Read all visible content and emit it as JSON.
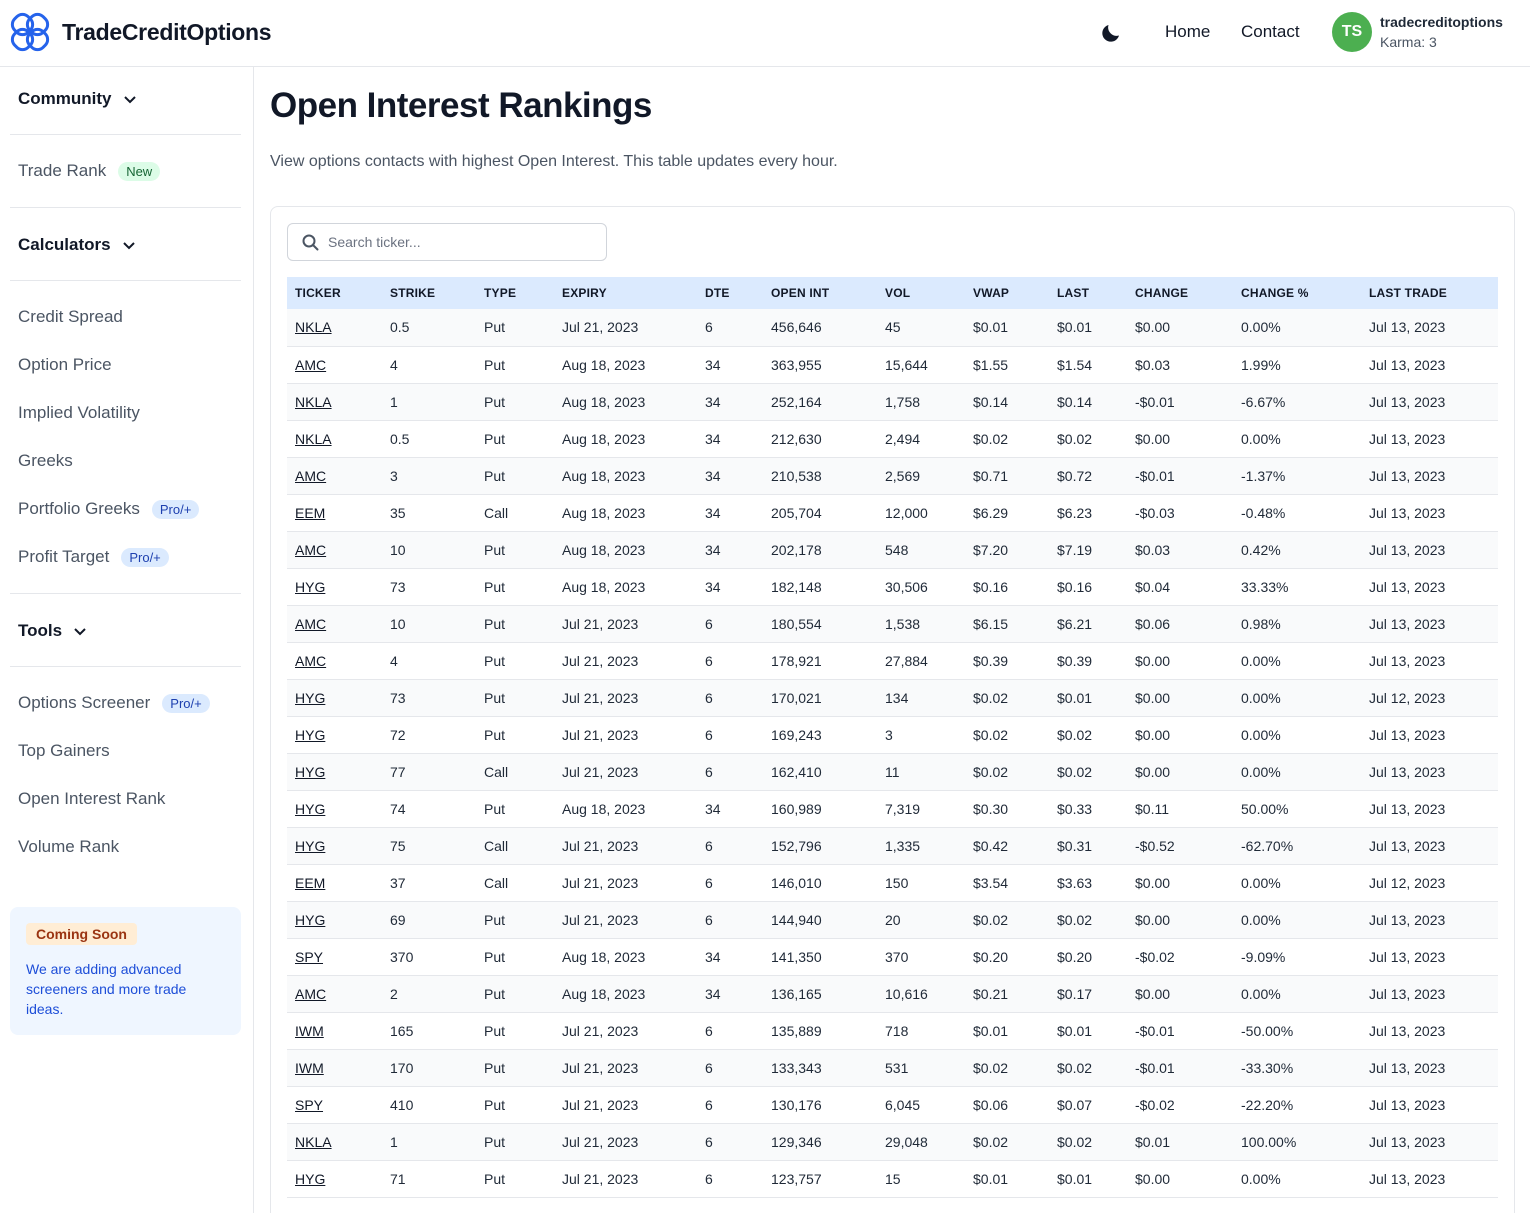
{
  "header": {
    "brand": "TradeCreditOptions",
    "nav": {
      "home": "Home",
      "contact": "Contact"
    },
    "user": {
      "initials": "TS",
      "name": "tradecreditoptions",
      "karma": "Karma: 3"
    },
    "icons": {
      "logo": "rings-logo-icon",
      "theme": "moon-icon"
    },
    "colors": {
      "logo": "#2563eb",
      "avatar": "#4caf50"
    }
  },
  "sidebar": {
    "community": "Community",
    "trade_rank": {
      "label": "Trade Rank",
      "badge": "New"
    },
    "calculators": "Calculators",
    "calc_items": [
      {
        "label": "Credit Spread",
        "badge": ""
      },
      {
        "label": "Option Price",
        "badge": ""
      },
      {
        "label": "Implied Volatility",
        "badge": ""
      },
      {
        "label": "Greeks",
        "badge": ""
      },
      {
        "label": "Portfolio Greeks",
        "badge": "Pro/+"
      },
      {
        "label": "Profit Target",
        "badge": "Pro/+"
      }
    ],
    "tools": "Tools",
    "tool_items": [
      {
        "label": "Options Screener",
        "badge": "Pro/+"
      },
      {
        "label": "Top Gainers",
        "badge": ""
      },
      {
        "label": "Open Interest Rank",
        "badge": ""
      },
      {
        "label": "Volume Rank",
        "badge": ""
      }
    ],
    "promo": {
      "badge": "Coming Soon",
      "text": "We are adding advanced screeners and more trade ideas."
    }
  },
  "main": {
    "title": "Open Interest Rankings",
    "description": "View options contacts with highest Open Interest. This table updates every hour.",
    "search_placeholder": "Search ticker...",
    "columns": [
      "TICKER",
      "STRIKE",
      "TYPE",
      "EXPIRY",
      "DTE",
      "OPEN INT",
      "VOL",
      "VWAP",
      "LAST",
      "CHANGE",
      "CHANGE %",
      "LAST TRADE"
    ],
    "rows": [
      [
        "NKLA",
        "0.5",
        "Put",
        "Jul 21, 2023",
        "6",
        "456,646",
        "45",
        "$0.01",
        "$0.01",
        "$0.00",
        "0.00%",
        "Jul 13, 2023"
      ],
      [
        "AMC",
        "4",
        "Put",
        "Aug 18, 2023",
        "34",
        "363,955",
        "15,644",
        "$1.55",
        "$1.54",
        "$0.03",
        "1.99%",
        "Jul 13, 2023"
      ],
      [
        "NKLA",
        "1",
        "Put",
        "Aug 18, 2023",
        "34",
        "252,164",
        "1,758",
        "$0.14",
        "$0.14",
        "-$0.01",
        "-6.67%",
        "Jul 13, 2023"
      ],
      [
        "NKLA",
        "0.5",
        "Put",
        "Aug 18, 2023",
        "34",
        "212,630",
        "2,494",
        "$0.02",
        "$0.02",
        "$0.00",
        "0.00%",
        "Jul 13, 2023"
      ],
      [
        "AMC",
        "3",
        "Put",
        "Aug 18, 2023",
        "34",
        "210,538",
        "2,569",
        "$0.71",
        "$0.72",
        "-$0.01",
        "-1.37%",
        "Jul 13, 2023"
      ],
      [
        "EEM",
        "35",
        "Call",
        "Aug 18, 2023",
        "34",
        "205,704",
        "12,000",
        "$6.29",
        "$6.23",
        "-$0.03",
        "-0.48%",
        "Jul 13, 2023"
      ],
      [
        "AMC",
        "10",
        "Put",
        "Aug 18, 2023",
        "34",
        "202,178",
        "548",
        "$7.20",
        "$7.19",
        "$0.03",
        "0.42%",
        "Jul 13, 2023"
      ],
      [
        "HYG",
        "73",
        "Put",
        "Aug 18, 2023",
        "34",
        "182,148",
        "30,506",
        "$0.16",
        "$0.16",
        "$0.04",
        "33.33%",
        "Jul 13, 2023"
      ],
      [
        "AMC",
        "10",
        "Put",
        "Jul 21, 2023",
        "6",
        "180,554",
        "1,538",
        "$6.15",
        "$6.21",
        "$0.06",
        "0.98%",
        "Jul 13, 2023"
      ],
      [
        "AMC",
        "4",
        "Put",
        "Jul 21, 2023",
        "6",
        "178,921",
        "27,884",
        "$0.39",
        "$0.39",
        "$0.00",
        "0.00%",
        "Jul 13, 2023"
      ],
      [
        "HYG",
        "73",
        "Put",
        "Jul 21, 2023",
        "6",
        "170,021",
        "134",
        "$0.02",
        "$0.01",
        "$0.00",
        "0.00%",
        "Jul 12, 2023"
      ],
      [
        "HYG",
        "72",
        "Put",
        "Jul 21, 2023",
        "6",
        "169,243",
        "3",
        "$0.02",
        "$0.02",
        "$0.00",
        "0.00%",
        "Jul 13, 2023"
      ],
      [
        "HYG",
        "77",
        "Call",
        "Jul 21, 2023",
        "6",
        "162,410",
        "11",
        "$0.02",
        "$0.02",
        "$0.00",
        "0.00%",
        "Jul 13, 2023"
      ],
      [
        "HYG",
        "74",
        "Put",
        "Aug 18, 2023",
        "34",
        "160,989",
        "7,319",
        "$0.30",
        "$0.33",
        "$0.11",
        "50.00%",
        "Jul 13, 2023"
      ],
      [
        "HYG",
        "75",
        "Call",
        "Jul 21, 2023",
        "6",
        "152,796",
        "1,335",
        "$0.42",
        "$0.31",
        "-$0.52",
        "-62.70%",
        "Jul 13, 2023"
      ],
      [
        "EEM",
        "37",
        "Call",
        "Jul 21, 2023",
        "6",
        "146,010",
        "150",
        "$3.54",
        "$3.63",
        "$0.00",
        "0.00%",
        "Jul 12, 2023"
      ],
      [
        "HYG",
        "69",
        "Put",
        "Jul 21, 2023",
        "6",
        "144,940",
        "20",
        "$0.02",
        "$0.02",
        "$0.00",
        "0.00%",
        "Jul 13, 2023"
      ],
      [
        "SPY",
        "370",
        "Put",
        "Aug 18, 2023",
        "34",
        "141,350",
        "370",
        "$0.20",
        "$0.20",
        "-$0.02",
        "-9.09%",
        "Jul 13, 2023"
      ],
      [
        "AMC",
        "2",
        "Put",
        "Aug 18, 2023",
        "34",
        "136,165",
        "10,616",
        "$0.21",
        "$0.17",
        "$0.00",
        "0.00%",
        "Jul 13, 2023"
      ],
      [
        "IWM",
        "165",
        "Put",
        "Jul 21, 2023",
        "6",
        "135,889",
        "718",
        "$0.01",
        "$0.01",
        "-$0.01",
        "-50.00%",
        "Jul 13, 2023"
      ],
      [
        "IWM",
        "170",
        "Put",
        "Jul 21, 2023",
        "6",
        "133,343",
        "531",
        "$0.02",
        "$0.02",
        "-$0.01",
        "-33.30%",
        "Jul 13, 2023"
      ],
      [
        "SPY",
        "410",
        "Put",
        "Jul 21, 2023",
        "6",
        "130,176",
        "6,045",
        "$0.06",
        "$0.07",
        "-$0.02",
        "-22.20%",
        "Jul 13, 2023"
      ],
      [
        "NKLA",
        "1",
        "Put",
        "Jul 21, 2023",
        "6",
        "129,346",
        "29,048",
        "$0.02",
        "$0.02",
        "$0.01",
        "100.00%",
        "Jul 13, 2023"
      ],
      [
        "HYG",
        "71",
        "Put",
        "Jul 21, 2023",
        "6",
        "123,757",
        "15",
        "$0.01",
        "$0.01",
        "$0.00",
        "0.00%",
        "Jul 13, 2023"
      ]
    ]
  }
}
